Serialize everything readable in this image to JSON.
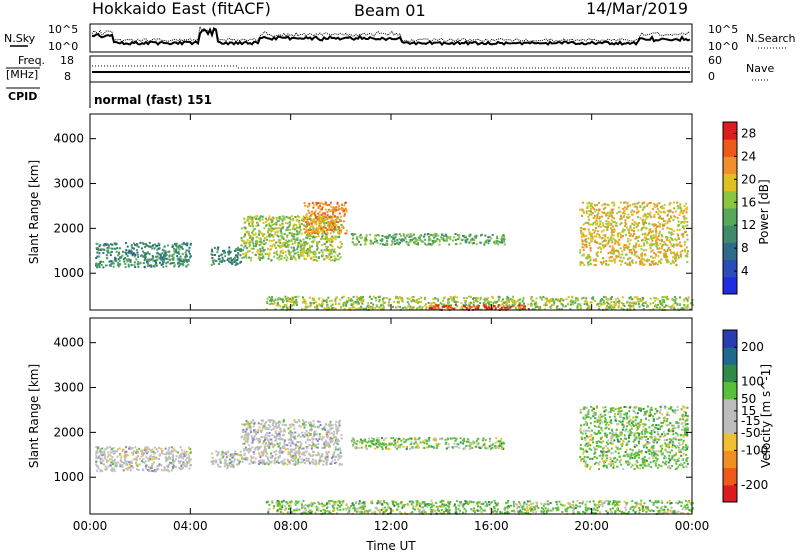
{
  "header": {
    "title": "Hokkaido East (fitACF)",
    "beam": "Beam 01",
    "date": "14/Mar/2019"
  },
  "top_panels": {
    "nsky_label": "N.Sky",
    "nsky_ticks": [
      "10^5",
      "10^0"
    ],
    "nsearch_label": "N.Search",
    "nsearch_ticks": [
      "10^5",
      "10^0"
    ],
    "freq_label": "Freq.",
    "freq_unit": "[MHz]",
    "freq_ticks": [
      "18",
      "8"
    ],
    "nave_label": "Nave",
    "nave_ticks": [
      "60",
      "0"
    ],
    "cpid_label": "CPID",
    "cpid_text": "normal (fast) 151"
  },
  "chart_data": [
    {
      "type": "heatmap",
      "panel": "power",
      "ylabel": "Slant Range [km]",
      "xlabel": "",
      "x_ticks": [
        "00:00",
        "04:00",
        "08:00",
        "12:00",
        "16:00",
        "20:00",
        "00:00"
      ],
      "y_ticks": [
        1000,
        2000,
        3000,
        4000
      ],
      "ylim": [
        180,
        4550
      ],
      "xlim_hours": [
        0,
        24
      ],
      "colorbar": {
        "label": "Power [dB]",
        "ticks": [
          4,
          8,
          12,
          16,
          20,
          24,
          28
        ],
        "range": [
          0,
          30
        ]
      },
      "echo_regions": [
        {
          "t0": 0.2,
          "t1": 4.0,
          "r0": 1150,
          "r1": 1700,
          "level": 10
        },
        {
          "t0": 4.8,
          "t1": 6.0,
          "r0": 1200,
          "r1": 1600,
          "level": 9
        },
        {
          "t0": 6.0,
          "t1": 10.0,
          "r0": 1300,
          "r1": 2300,
          "level": 16
        },
        {
          "t0": 8.5,
          "t1": 10.2,
          "r0": 1900,
          "r1": 2600,
          "level": 20
        },
        {
          "t0": 10.4,
          "t1": 16.5,
          "r0": 1650,
          "r1": 1900,
          "level": 12
        },
        {
          "t0": 19.5,
          "t1": 23.8,
          "r0": 1200,
          "r1": 2600,
          "level": 18
        },
        {
          "t0": 7.0,
          "t1": 24.0,
          "r0": 200,
          "r1": 500,
          "level": 14
        },
        {
          "t0": 13.5,
          "t1": 17.5,
          "r0": 200,
          "r1": 320,
          "level": 27
        }
      ]
    },
    {
      "type": "heatmap",
      "panel": "velocity",
      "ylabel": "Slant Range [km]",
      "xlabel": "Time UT",
      "x_ticks": [
        "00:00",
        "04:00",
        "08:00",
        "12:00",
        "16:00",
        "20:00",
        "00:00"
      ],
      "y_ticks": [
        1000,
        2000,
        3000,
        4000
      ],
      "ylim": [
        180,
        4550
      ],
      "xlim_hours": [
        0,
        24
      ],
      "colorbar": {
        "label": "Velocity [m s^-1]",
        "ticks": [
          200,
          100,
          50,
          15,
          -15,
          -50,
          -100,
          -200
        ],
        "range": [
          -250,
          250
        ]
      },
      "echo_regions": [
        {
          "t0": 0.2,
          "t1": 4.0,
          "r0": 1150,
          "r1": 1700,
          "level": 0
        },
        {
          "t0": 4.8,
          "t1": 6.0,
          "r0": 1200,
          "r1": 1600,
          "level": 0
        },
        {
          "t0": 6.0,
          "t1": 10.0,
          "r0": 1300,
          "r1": 2300,
          "level": 0
        },
        {
          "t0": 10.4,
          "t1": 16.5,
          "r0": 1650,
          "r1": 1900,
          "level": 30
        },
        {
          "t0": 19.5,
          "t1": 23.8,
          "r0": 1200,
          "r1": 2600,
          "level": 20
        },
        {
          "t0": 7.0,
          "t1": 24.0,
          "r0": 200,
          "r1": 500,
          "level": 40
        }
      ]
    }
  ]
}
